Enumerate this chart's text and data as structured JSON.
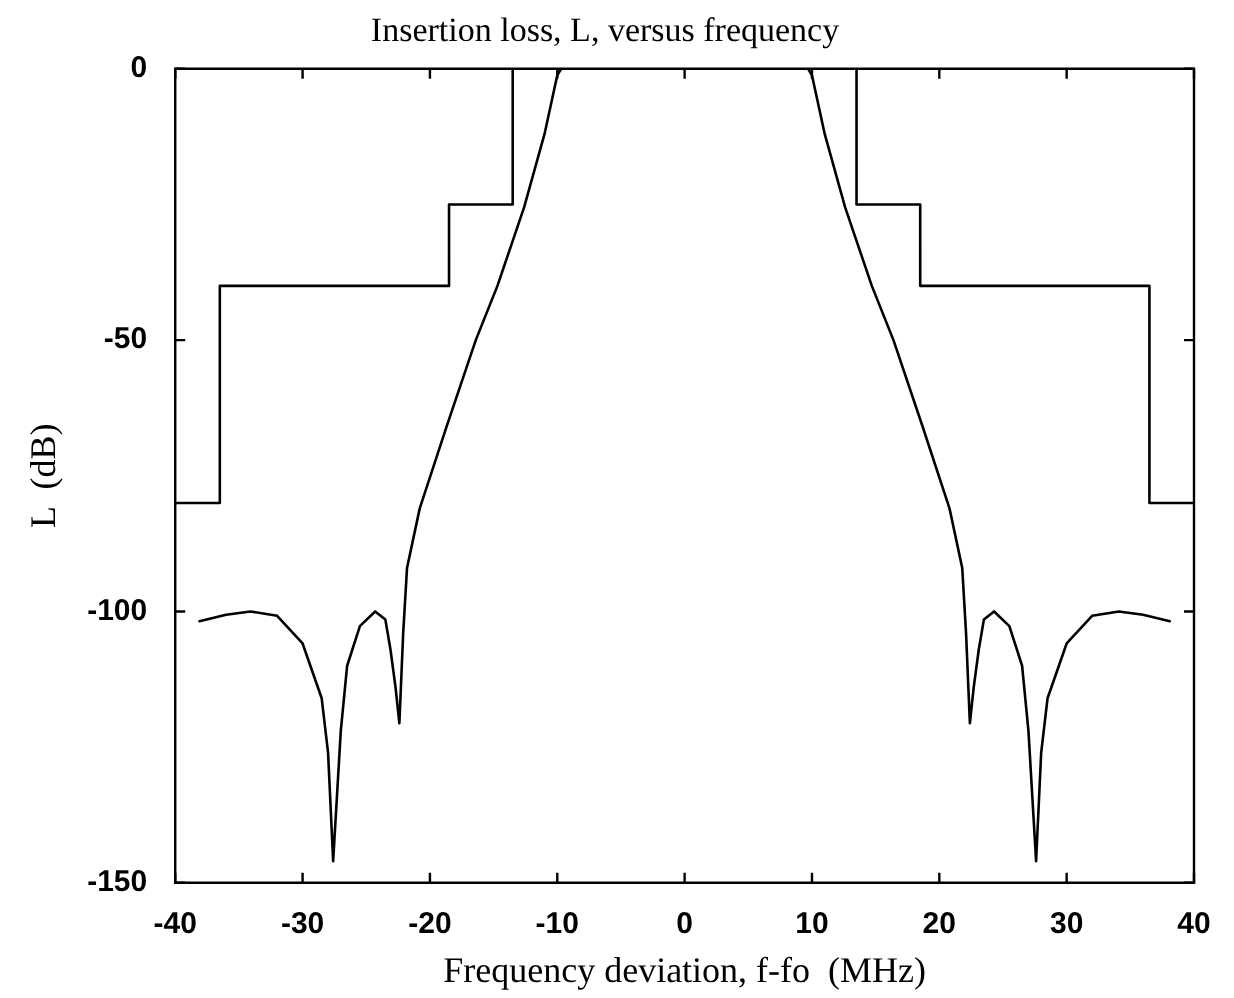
{
  "chart_data": {
    "type": "line",
    "title": "Insertion loss, L, versus frequency",
    "xlabel": "Frequency deviation, f-fo  (MHz)",
    "ylabel": "L  (dB)",
    "xlim": [
      -40,
      40
    ],
    "xticks": [
      -40,
      -30,
      -20,
      -10,
      0,
      10,
      20,
      30,
      40
    ],
    "ylim": [
      -150,
      0
    ],
    "yticks": [
      -150,
      -100,
      -50,
      0
    ],
    "grid": false,
    "legend": false,
    "marker": "none",
    "line_style": "solid",
    "series": [
      {
        "type": "step",
        "color": "#000000",
        "x": [
          -40,
          -36.5,
          -18.5,
          -13.5,
          13.5,
          18.5,
          36.5,
          40
        ],
        "values": [
          -80,
          -40,
          -25,
          0,
          -25,
          -40,
          -80,
          -80
        ]
      },
      {
        "color": "#000000",
        "x": [
          -38.1,
          -36,
          -34.1,
          -32,
          -30,
          -28.5,
          -28,
          -27.6,
          -27,
          -26.5,
          -25.5,
          -24.3,
          -23.5,
          -23.1,
          -22.7,
          -22.4,
          -22.1,
          -21.8,
          -20.8,
          -18.7,
          -16.4,
          -14.7,
          -12.6,
          -11,
          -10,
          -9.7,
          9.7,
          10,
          11,
          12.6,
          14.7,
          16.4,
          18.7,
          20.8,
          21.8,
          22.1,
          22.4,
          22.7,
          23.1,
          23.5,
          24.3,
          25.5,
          26.5,
          27,
          27.6,
          28,
          28.5,
          30,
          32,
          34.1,
          36,
          38.1
        ],
        "values": [
          -101.8,
          -100.6,
          -100,
          -100.8,
          -105.9,
          -116,
          -126,
          -146,
          -122,
          -110,
          -102.7,
          -100,
          -101.5,
          -107,
          -114,
          -120.6,
          -104,
          -92,
          -81,
          -66,
          -50,
          -40,
          -25.5,
          -12,
          -1.2,
          0,
          0,
          -1.2,
          -12,
          -25.5,
          -40,
          -50,
          -66,
          -81,
          -92,
          -104,
          -120.6,
          -114,
          -107,
          -101.5,
          -100,
          -102.7,
          -110,
          -122,
          -146,
          -126,
          -116,
          -105.9,
          -100.8,
          -100,
          -100.6,
          -101.8
        ]
      }
    ]
  }
}
